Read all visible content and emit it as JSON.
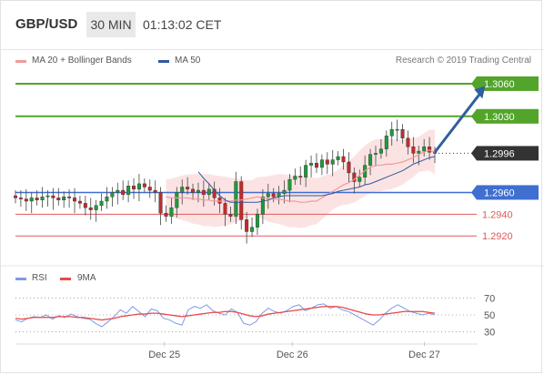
{
  "header": {
    "pair": "GBP/USD",
    "timeframe": "30 MIN",
    "time": "01:13:02 CET"
  },
  "legend": {
    "ma_bollinger": "MA 20 + Bollinger Bands",
    "ma50": "MA 50",
    "credit": "Research © 2019 Trading Central"
  },
  "rsi_legend": {
    "rsi": "RSI",
    "ma9": "9MA"
  },
  "colors": {
    "resistance": "#52a52a",
    "pivot": "#3f6fd0",
    "support": "#e05a5a",
    "current": "#333333",
    "arrow": "#2f5f9e",
    "bollinger_fill": "#fbd9d9",
    "ma20": "#f19a9a",
    "ma50": "#2e5a9e",
    "rsi": "#7d9be6",
    "rsi_ma": "#e84a4a"
  },
  "chart_data": [
    {
      "type": "line",
      "title": "",
      "ylim": [
        2911,
        3070
      ],
      "x_ticks": [
        "Dec 25",
        "Dec 26",
        "Dec 27"
      ],
      "levels": [
        {
          "label": "1.3060",
          "value": 1.306,
          "kind": "resistance"
        },
        {
          "label": "1.3030",
          "value": 1.303,
          "kind": "resistance"
        },
        {
          "label": "1.2996",
          "value": 1.2996,
          "kind": "current"
        },
        {
          "label": "1.2960",
          "value": 1.296,
          "kind": "pivot"
        },
        {
          "label": "1.2940",
          "value": 1.294,
          "kind": "support"
        },
        {
          "label": "1.2920",
          "value": 1.292,
          "kind": "support"
        }
      ],
      "arrow": {
        "from": [
          1.0,
          1.2997
        ],
        "to": [
          1.12,
          1.3058
        ]
      },
      "series": [
        {
          "name": "Close",
          "values": [
            1.2955,
            1.2954,
            1.2952,
            1.2955,
            1.2953,
            1.2956,
            1.2957,
            1.2955,
            1.2953,
            1.2956,
            1.2955,
            1.2952,
            1.295,
            1.2946,
            1.2944,
            1.2948,
            1.2952,
            1.2956,
            1.296,
            1.2962,
            1.2958,
            1.2966,
            1.2963,
            1.2968,
            1.2965,
            1.2962,
            1.296,
            1.2941,
            1.2938,
            1.2946,
            1.296,
            1.2965,
            1.2963,
            1.296,
            1.2962,
            1.2958,
            1.2963,
            1.2955,
            1.295,
            1.294,
            1.2938,
            1.297,
            1.2935,
            1.2924,
            1.2928,
            1.294,
            1.2956,
            1.2959,
            1.2956,
            1.2959,
            1.2962,
            1.2972,
            1.2975,
            1.2974,
            1.2985,
            1.2987,
            1.2983,
            1.299,
            1.2986,
            1.299,
            1.2993,
            1.2988,
            1.2978,
            1.297,
            1.2974,
            1.2985,
            1.2995,
            1.2996,
            1.3,
            1.3012,
            1.3018,
            1.3018,
            1.301,
            1.3002,
            1.2996,
            1.2998,
            1.3002,
            1.2997,
            1.2996
          ]
        },
        {
          "name": "MA 20",
          "values": [
            1.2956,
            1.2955,
            1.2955,
            1.2955,
            1.2955,
            1.2954,
            1.2954,
            1.2953,
            1.2953,
            1.2952,
            1.2952,
            1.2952,
            1.2952,
            1.2953,
            1.2953,
            1.2954,
            1.2955,
            1.2956,
            1.2955,
            1.2954,
            1.2954,
            1.2954,
            1.2953,
            1.2952,
            1.2952,
            1.2951,
            1.2951,
            1.2952,
            1.2952,
            1.2955,
            1.2958,
            1.2961,
            1.2964,
            1.2967,
            1.2969,
            1.2972,
            1.2976,
            1.298,
            1.2983,
            1.2985,
            1.2985,
            1.2986,
            1.2986,
            1.2987,
            1.2988,
            1.299,
            1.2992,
            1.2995,
            1.2997,
            1.2999,
            1.2997
          ]
        },
        {
          "name": "MA 50",
          "values": [
            1.2979,
            1.2973,
            1.2968,
            1.2962,
            1.2957,
            1.2953,
            1.2951,
            1.2951,
            1.2951,
            1.2951,
            1.2951,
            1.2951,
            1.2952,
            1.2953,
            1.2955,
            1.2956,
            1.2957,
            1.2957,
            1.2957,
            1.2957,
            1.2957,
            1.2957,
            1.2957,
            1.2957,
            1.2958,
            1.2959,
            1.2961,
            1.2962,
            1.2963,
            1.2964,
            1.2965,
            1.2967,
            1.2968,
            1.297,
            1.2972,
            1.2974,
            1.2976,
            1.2978,
            1.298,
            1.2983,
            1.2986,
            1.2988,
            1.299,
            1.2992,
            1.2993
          ]
        }
      ]
    },
    {
      "type": "line",
      "title": "",
      "ylim": [
        22,
        78
      ],
      "y_ticks": [
        "70",
        "50",
        "30"
      ],
      "series": [
        {
          "name": "RSI",
          "values": [
            44,
            42,
            46,
            48,
            47,
            50,
            45,
            49,
            47,
            51,
            48,
            46,
            45,
            40,
            36,
            42,
            48,
            56,
            52,
            60,
            54,
            48,
            57,
            55,
            46,
            44,
            40,
            38,
            56,
            60,
            58,
            62,
            55,
            52,
            50,
            57,
            53,
            40,
            38,
            42,
            52,
            58,
            54,
            52,
            55,
            60,
            62,
            55,
            58,
            62,
            63,
            58,
            60,
            56,
            54,
            50,
            46,
            42,
            38,
            44,
            52,
            58,
            62,
            58,
            54,
            52,
            50,
            52,
            50
          ]
        },
        {
          "name": "9MA",
          "values": [
            46,
            45,
            46,
            47,
            47,
            47,
            47,
            48,
            48,
            48,
            47,
            47,
            46,
            45,
            44,
            45,
            46,
            48,
            49,
            50,
            51,
            51,
            52,
            52,
            51,
            50,
            49,
            48,
            49,
            50,
            51,
            52,
            53,
            53,
            54,
            54,
            53,
            51,
            49,
            48,
            49,
            51,
            52,
            53,
            54,
            55,
            56,
            57,
            58,
            59,
            60,
            60,
            60,
            59,
            57,
            55,
            53,
            51,
            50,
            50,
            51,
            52,
            53,
            54,
            54,
            54,
            54,
            53,
            52
          ]
        }
      ]
    }
  ]
}
